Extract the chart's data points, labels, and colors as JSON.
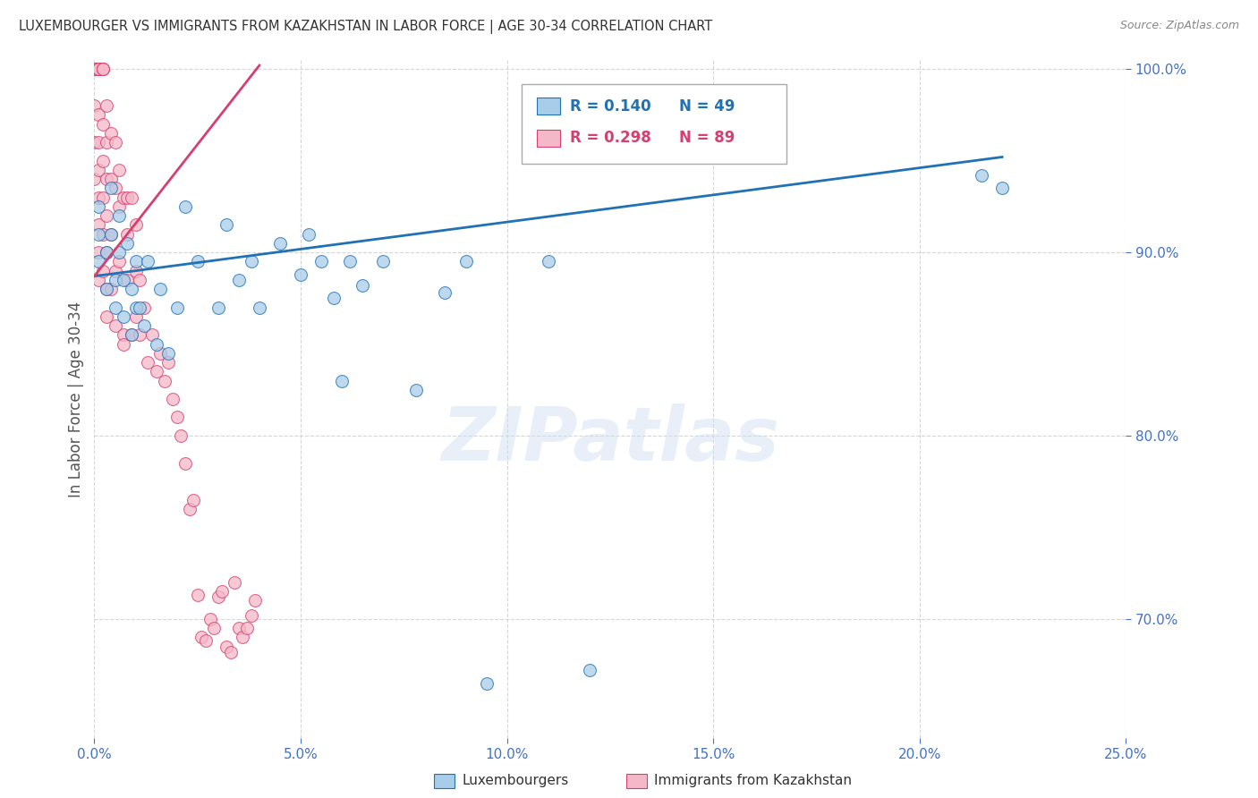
{
  "title": "LUXEMBOURGER VS IMMIGRANTS FROM KAZAKHSTAN IN LABOR FORCE | AGE 30-34 CORRELATION CHART",
  "source": "Source: ZipAtlas.com",
  "ylabel": "In Labor Force | Age 30-34",
  "xlim": [
    0.0,
    0.25
  ],
  "ylim": [
    0.635,
    1.005
  ],
  "xticks": [
    0.0,
    0.05,
    0.1,
    0.15,
    0.2,
    0.25
  ],
  "xticklabels": [
    "0.0%",
    "5.0%",
    "10.0%",
    "15.0%",
    "20.0%",
    "25.0%"
  ],
  "yticks": [
    0.7,
    0.8,
    0.9,
    1.0
  ],
  "yticklabels": [
    "70.0%",
    "80.0%",
    "90.0%",
    "100.0%"
  ],
  "watermark": "ZIPatlas",
  "legend_r_blue": "R = 0.140",
  "legend_n_blue": "N = 49",
  "legend_r_pink": "R = 0.298",
  "legend_n_pink": "N = 89",
  "legend_blue_label": "Luxembourgers",
  "legend_pink_label": "Immigrants from Kazakhstan",
  "blue_fill": "#a8cde8",
  "blue_edge": "#2171b5",
  "pink_fill": "#f5b8c8",
  "pink_edge": "#d44070",
  "blue_line_color": "#2171b5",
  "pink_line_color": "#d44070",
  "blue_scatter_x": [
    0.001,
    0.001,
    0.001,
    0.003,
    0.003,
    0.004,
    0.004,
    0.005,
    0.005,
    0.006,
    0.006,
    0.007,
    0.007,
    0.008,
    0.009,
    0.009,
    0.01,
    0.01,
    0.011,
    0.012,
    0.013,
    0.015,
    0.016,
    0.018,
    0.02,
    0.022,
    0.025,
    0.03,
    0.032,
    0.035,
    0.038,
    0.04,
    0.045,
    0.05,
    0.052,
    0.055,
    0.058,
    0.06,
    0.062,
    0.065,
    0.07,
    0.078,
    0.085,
    0.09,
    0.095,
    0.11,
    0.12,
    0.215,
    0.22
  ],
  "blue_scatter_y": [
    0.895,
    0.91,
    0.925,
    0.88,
    0.9,
    0.91,
    0.935,
    0.87,
    0.885,
    0.9,
    0.92,
    0.865,
    0.885,
    0.905,
    0.855,
    0.88,
    0.87,
    0.895,
    0.87,
    0.86,
    0.895,
    0.85,
    0.88,
    0.845,
    0.87,
    0.925,
    0.895,
    0.87,
    0.915,
    0.885,
    0.895,
    0.87,
    0.905,
    0.888,
    0.91,
    0.895,
    0.875,
    0.83,
    0.895,
    0.882,
    0.895,
    0.825,
    0.878,
    0.895,
    0.665,
    0.895,
    0.672,
    0.942,
    0.935
  ],
  "pink_scatter_x": [
    0.0,
    0.0,
    0.0,
    0.0,
    0.0,
    0.0,
    0.0,
    0.0,
    0.0,
    0.0,
    0.001,
    0.001,
    0.001,
    0.001,
    0.001,
    0.001,
    0.001,
    0.001,
    0.001,
    0.001,
    0.001,
    0.001,
    0.002,
    0.002,
    0.002,
    0.002,
    0.002,
    0.002,
    0.002,
    0.002,
    0.003,
    0.003,
    0.003,
    0.003,
    0.003,
    0.003,
    0.003,
    0.004,
    0.004,
    0.004,
    0.004,
    0.005,
    0.005,
    0.005,
    0.005,
    0.006,
    0.006,
    0.006,
    0.007,
    0.007,
    0.007,
    0.008,
    0.008,
    0.008,
    0.009,
    0.009,
    0.01,
    0.01,
    0.01,
    0.011,
    0.011,
    0.012,
    0.013,
    0.014,
    0.015,
    0.016,
    0.017,
    0.018,
    0.019,
    0.02,
    0.021,
    0.022,
    0.023,
    0.024,
    0.025,
    0.026,
    0.027,
    0.028,
    0.029,
    0.03,
    0.031,
    0.032,
    0.033,
    0.034,
    0.035,
    0.036,
    0.037,
    0.038,
    0.039
  ],
  "pink_scatter_y": [
    1.0,
    1.0,
    1.0,
    1.0,
    1.0,
    1.0,
    1.0,
    0.98,
    0.96,
    0.94,
    1.0,
    1.0,
    1.0,
    1.0,
    1.0,
    0.975,
    0.96,
    0.945,
    0.93,
    0.915,
    0.9,
    0.885,
    1.0,
    1.0,
    1.0,
    0.97,
    0.95,
    0.93,
    0.91,
    0.89,
    0.98,
    0.96,
    0.94,
    0.92,
    0.9,
    0.88,
    0.865,
    0.965,
    0.94,
    0.91,
    0.88,
    0.96,
    0.935,
    0.89,
    0.86,
    0.945,
    0.925,
    0.895,
    0.93,
    0.855,
    0.85,
    0.93,
    0.91,
    0.885,
    0.93,
    0.855,
    0.915,
    0.89,
    0.865,
    0.885,
    0.855,
    0.87,
    0.84,
    0.855,
    0.835,
    0.845,
    0.83,
    0.84,
    0.82,
    0.81,
    0.8,
    0.785,
    0.76,
    0.765,
    0.713,
    0.69,
    0.688,
    0.7,
    0.695,
    0.712,
    0.715,
    0.685,
    0.682,
    0.72,
    0.695,
    0.69,
    0.695,
    0.702,
    0.71
  ],
  "blue_line_x": [
    0.0,
    0.22
  ],
  "blue_line_y": [
    0.887,
    0.952
  ],
  "pink_line_x": [
    0.0,
    0.04
  ],
  "pink_line_y": [
    0.887,
    1.002
  ],
  "background_color": "#ffffff",
  "grid_color": "#cccccc",
  "title_color": "#333333",
  "tick_color": "#4472c4"
}
